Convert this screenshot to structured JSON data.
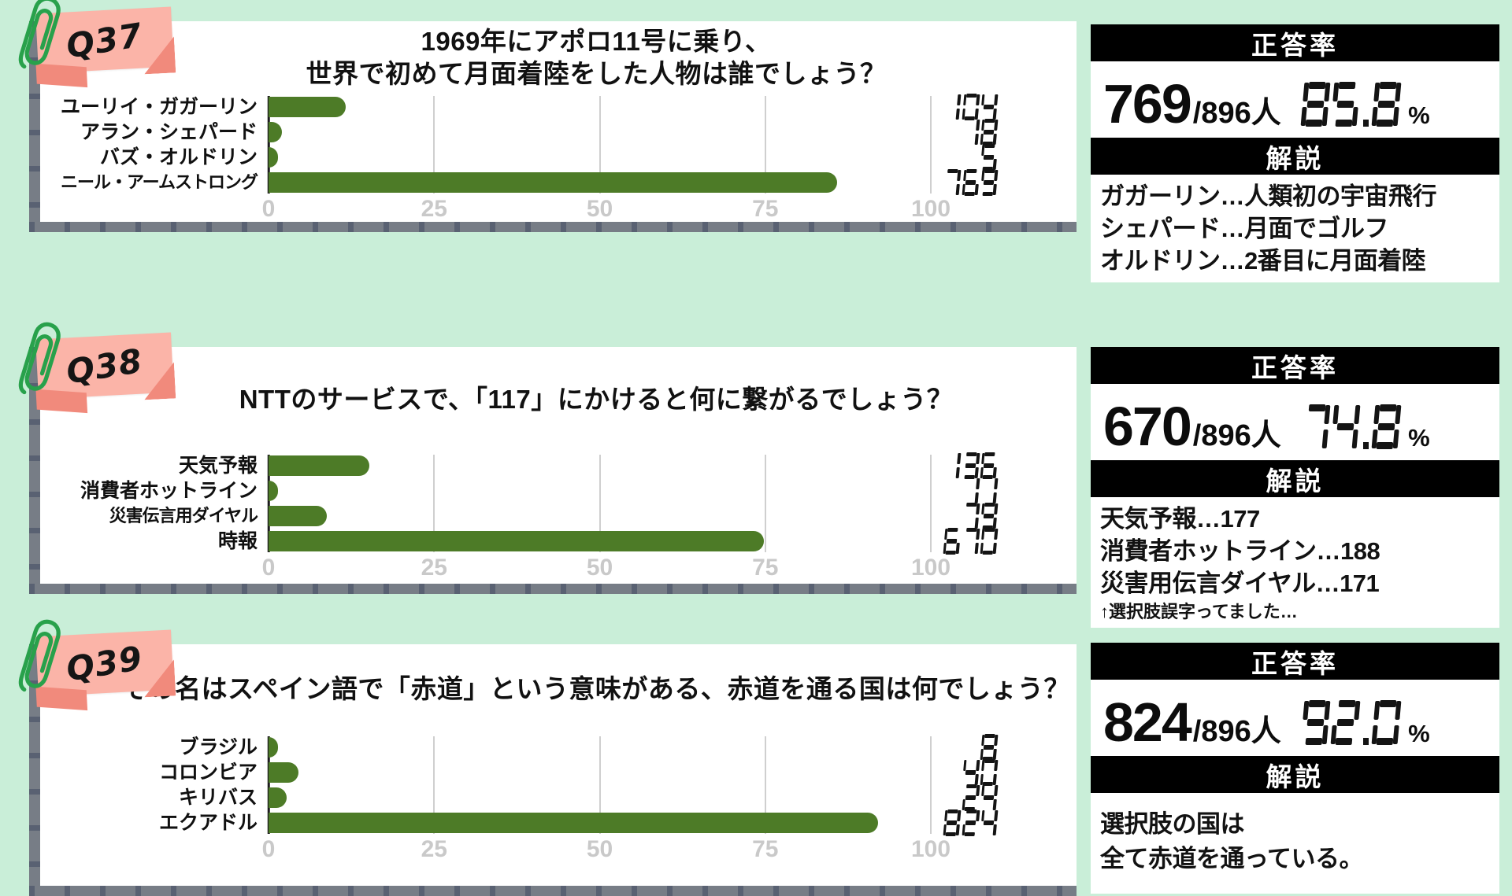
{
  "page": {
    "background_color": "#c9eed8",
    "bar_color": "#4d7b27",
    "sticky_color": "#fbb4a8",
    "sticky_fold_color": "#f18a7c",
    "paperclip_color": "#28a14b",
    "panel_edge_color": "#777d86",
    "axis_tick_color": "#c9c9c9"
  },
  "chart_data": [
    {
      "type": "bar",
      "orientation": "horizontal",
      "title": "1969年にアポロ11号に乗り、世界で初めて月面着陸をした人物は誰でしょう？",
      "categories": [
        "ユーリイ・ガガーリン",
        "アラン・シェパード",
        "バズ・オルドリン",
        "ニール・アームストロング"
      ],
      "values": [
        104,
        18,
        5,
        769
      ],
      "total_respondents": 896,
      "pct": [
        11.6,
        2.0,
        0.6,
        85.8
      ],
      "xlim": [
        0,
        100
      ],
      "x_ticks": [
        0,
        25,
        50,
        75,
        100
      ],
      "grid": true,
      "bar_color": "#4d7b27"
    },
    {
      "type": "bar",
      "orientation": "horizontal",
      "title": "NTTのサービスで、「117」にかけると何に繋がるでしょう？",
      "categories": [
        "天気予報",
        "消費者ホットライン",
        "災害伝言用ダイヤル",
        "時報"
      ],
      "values": [
        136,
        11,
        79,
        670
      ],
      "total_respondents": 896,
      "pct": [
        15.2,
        1.2,
        8.8,
        74.8
      ],
      "xlim": [
        0,
        100
      ],
      "x_ticks": [
        0,
        25,
        50,
        75,
        100
      ],
      "grid": true,
      "bar_color": "#4d7b27"
    },
    {
      "type": "bar",
      "orientation": "horizontal",
      "title": "その名はスペイン語で「赤道」という意味がある、赤道を通る国は何でしょう？",
      "categories": [
        "ブラジル",
        "コロンビア",
        "キリバス",
        "エクアドル"
      ],
      "values": [
        8,
        40,
        24,
        824
      ],
      "total_respondents": 896,
      "pct": [
        0.9,
        4.5,
        2.7,
        92.0
      ],
      "xlim": [
        0,
        100
      ],
      "x_ticks": [
        0,
        25,
        50,
        75,
        100
      ],
      "grid": true,
      "bar_color": "#4d7b27"
    }
  ],
  "questions": [
    {
      "tag": "Q37",
      "title_lines": [
        "1969年にアポロ11号に乗り、",
        "世界で初めて月面着陸をした人物は誰でしょう？"
      ],
      "options": [
        {
          "label": "ユーリイ・ガガーリン",
          "value": "104"
        },
        {
          "label": "アラン・シェパード",
          "value": "18"
        },
        {
          "label": "バズ・オルドリン",
          "value": "5"
        },
        {
          "label": "ニール・アームストロング",
          "value": "769"
        }
      ],
      "axis_ticks": [
        "0",
        "25",
        "50",
        "75",
        "100"
      ],
      "result": {
        "header": "正答率",
        "correct": "769",
        "denominator": "/896人",
        "percent": "85.8",
        "percent_unit": "%",
        "explanation_header": "解説",
        "explanation_lines": [
          "ガガーリン…人類初の宇宙飛行",
          "シェパード…月面でゴルフ",
          "オルドリン…2番目に月面着陸"
        ]
      }
    },
    {
      "tag": "Q38",
      "title_lines": [
        "NTTのサービスで、「117」にかけると何に繋がるでしょう？"
      ],
      "options": [
        {
          "label": "天気予報",
          "value": "136"
        },
        {
          "label": "消費者ホットライン",
          "value": "11"
        },
        {
          "label": "災害伝言用ダイヤル",
          "value": "79"
        },
        {
          "label": "時報",
          "value": "670"
        }
      ],
      "axis_ticks": [
        "0",
        "25",
        "50",
        "75",
        "100"
      ],
      "result": {
        "header": "正答率",
        "correct": "670",
        "denominator": "/896人",
        "percent": "74.8",
        "percent_unit": "%",
        "explanation_header": "解説",
        "explanation_lines": [
          "天気予報…177",
          "消費者ホットライン…188",
          "災害用伝言ダイヤル…171",
          "↑選択肢誤字ってました…"
        ]
      }
    },
    {
      "tag": "Q39",
      "title_lines": [
        "その名はスペイン語で「赤道」という意味がある、赤道を通る国は何でしょう？"
      ],
      "options": [
        {
          "label": "ブラジル",
          "value": "8"
        },
        {
          "label": "コロンビア",
          "value": "40"
        },
        {
          "label": "キリバス",
          "value": "24"
        },
        {
          "label": "エクアドル",
          "value": "824"
        }
      ],
      "axis_ticks": [
        "0",
        "25",
        "50",
        "75",
        "100"
      ],
      "result": {
        "header": "正答率",
        "correct": "824",
        "denominator": "/896人",
        "percent": "92.0",
        "percent_unit": "%",
        "explanation_header": "解説",
        "explanation_lines": [
          "選択肢の国は",
          "全て赤道を通っている。"
        ]
      }
    }
  ]
}
